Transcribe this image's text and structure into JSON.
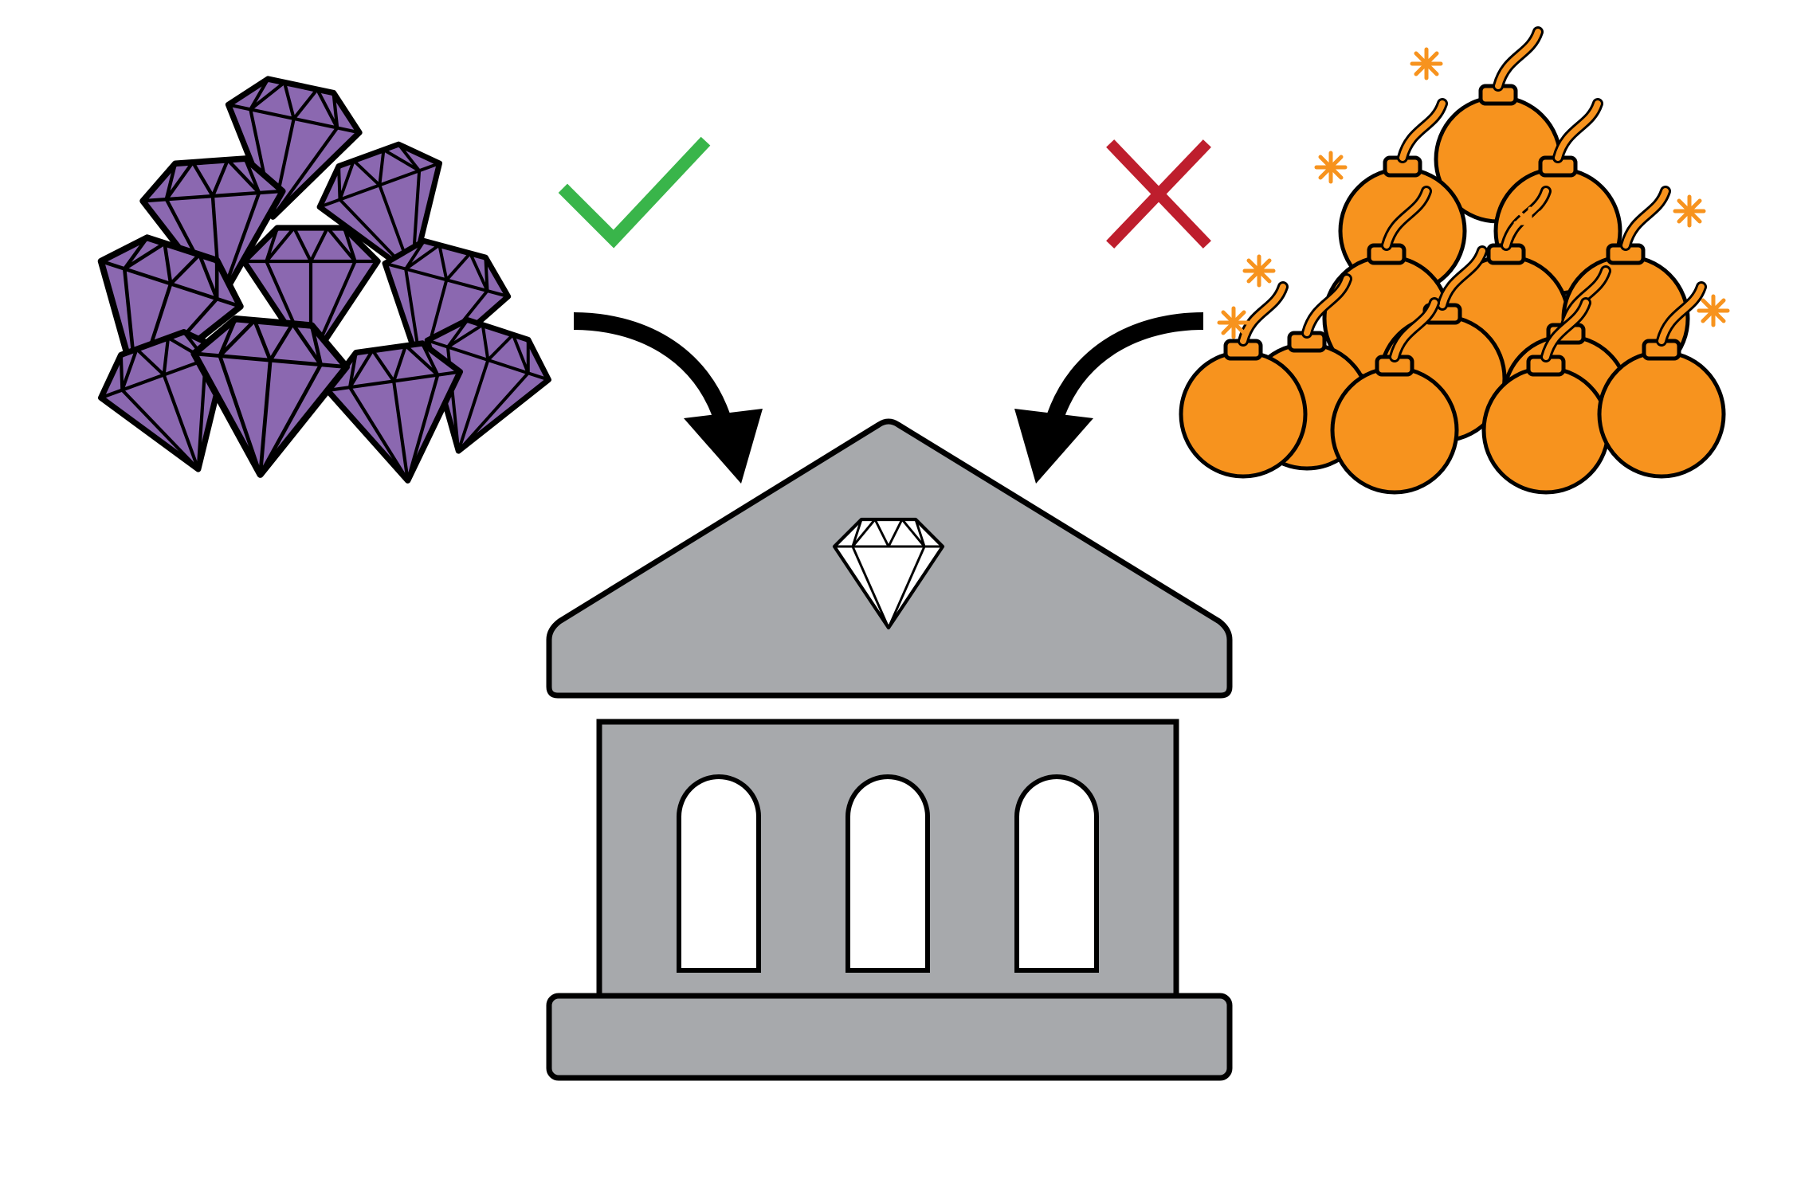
{
  "diagram": {
    "gem_pile_icon": "gem-pile-icon",
    "bomb_pile_icon": "bomb-pile-icon",
    "bank_icon": "bank-building-icon",
    "accept_icon": "checkmark-icon",
    "reject_icon": "x-mark-icon",
    "arrow_icon": "curved-arrow-icon"
  },
  "colors": {
    "gem_fill": "#8b68b0",
    "bomb_fill": "#f7931e",
    "building_fill": "#a7a9ac",
    "check": "#39b54a",
    "cross": "#be1e2d",
    "stroke": "#000000",
    "window_fill": "#ffffff"
  }
}
